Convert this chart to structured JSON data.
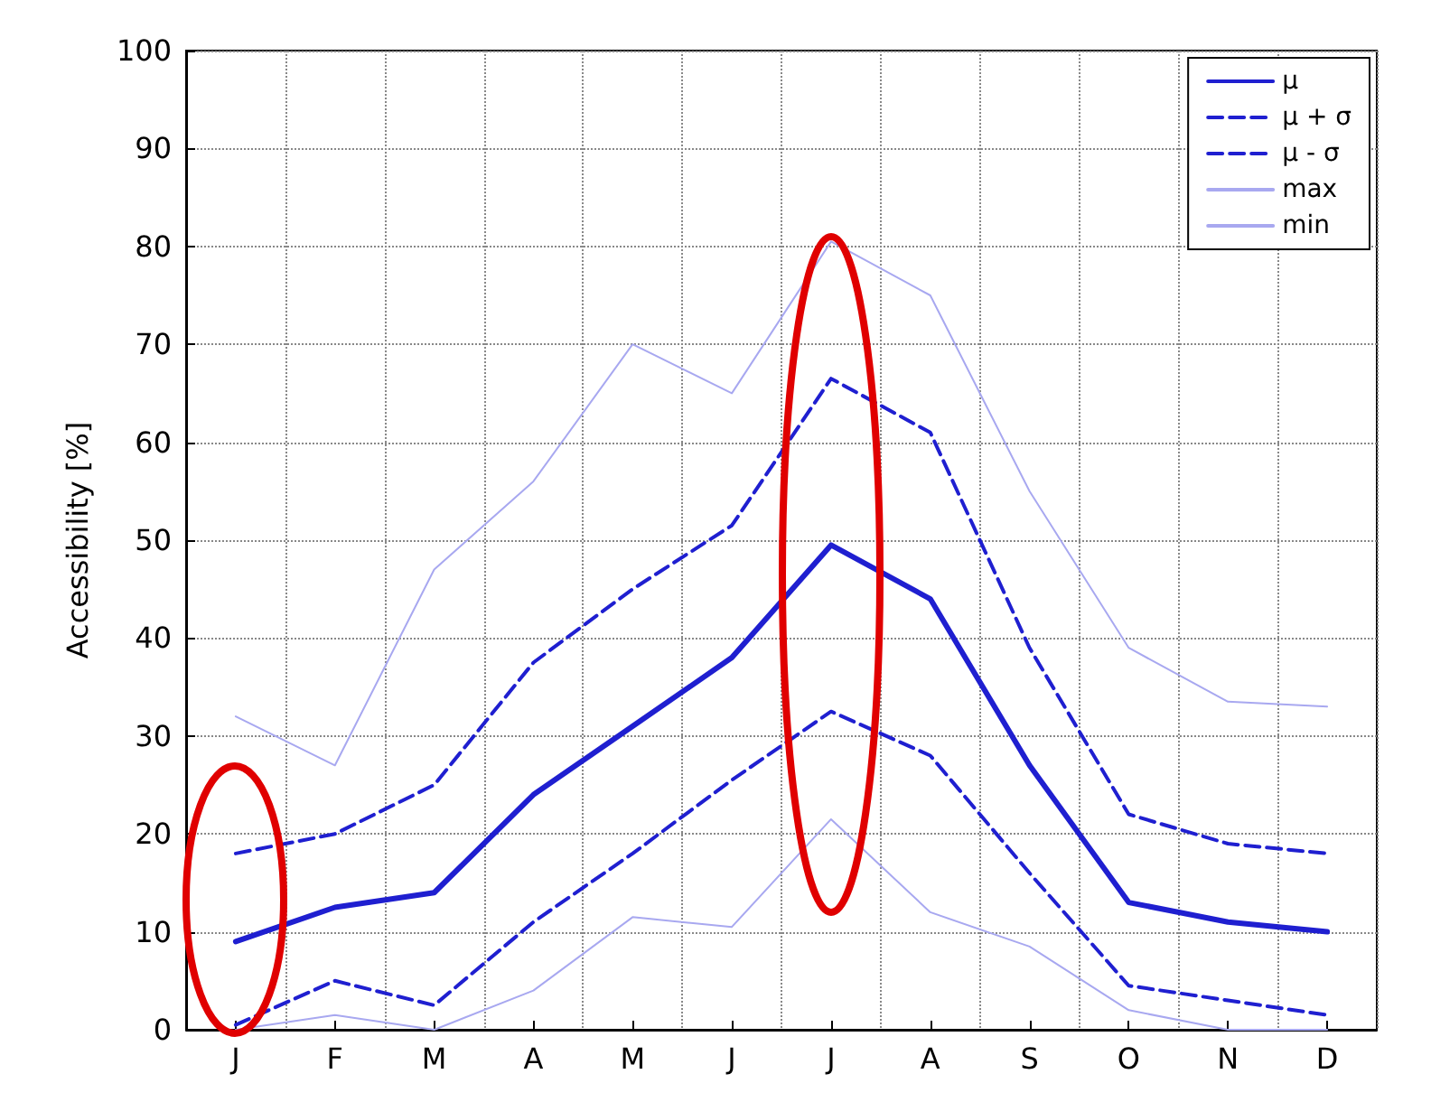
{
  "chart_data": {
    "type": "line",
    "ylabel": "Accessibility [%]",
    "categories": [
      "J",
      "F",
      "M",
      "A",
      "M",
      "J",
      "J",
      "A",
      "S",
      "O",
      "N",
      "D"
    ],
    "ylim": [
      0,
      100
    ],
    "yticks": [
      0,
      10,
      20,
      30,
      40,
      50,
      60,
      70,
      80,
      90,
      100
    ],
    "grid": true,
    "legend": "top right",
    "marker": "none",
    "series": [
      {
        "name": "μ",
        "color": "#1f1fd0",
        "line_style": "solid",
        "values": [
          9,
          12.5,
          14,
          24,
          31,
          38,
          49.5,
          44,
          27,
          13,
          11,
          10
        ]
      },
      {
        "name": "μ + σ",
        "color": "#1f1fd0",
        "line_style": "dashed",
        "values": [
          18,
          20,
          25,
          37.5,
          45,
          51.5,
          66.5,
          61,
          39,
          22,
          19,
          18
        ]
      },
      {
        "name": "μ - σ",
        "color": "#1f1fd0",
        "line_style": "dashed",
        "values": [
          0.5,
          5,
          2.5,
          11,
          18,
          25.5,
          32.5,
          28,
          16,
          4.5,
          3,
          1.5
        ]
      },
      {
        "name": "max",
        "color": "#a8a8f0",
        "line_style": "solid",
        "values": [
          32,
          27,
          47,
          56,
          70,
          65,
          80.5,
          75,
          55,
          39,
          33.5,
          33
        ]
      },
      {
        "name": "min",
        "color": "#a8a8f0",
        "line_style": "solid",
        "values": [
          0,
          1.5,
          0,
          4,
          11.5,
          10.5,
          21.5,
          12,
          8.5,
          2,
          0,
          0
        ]
      }
    ]
  }
}
